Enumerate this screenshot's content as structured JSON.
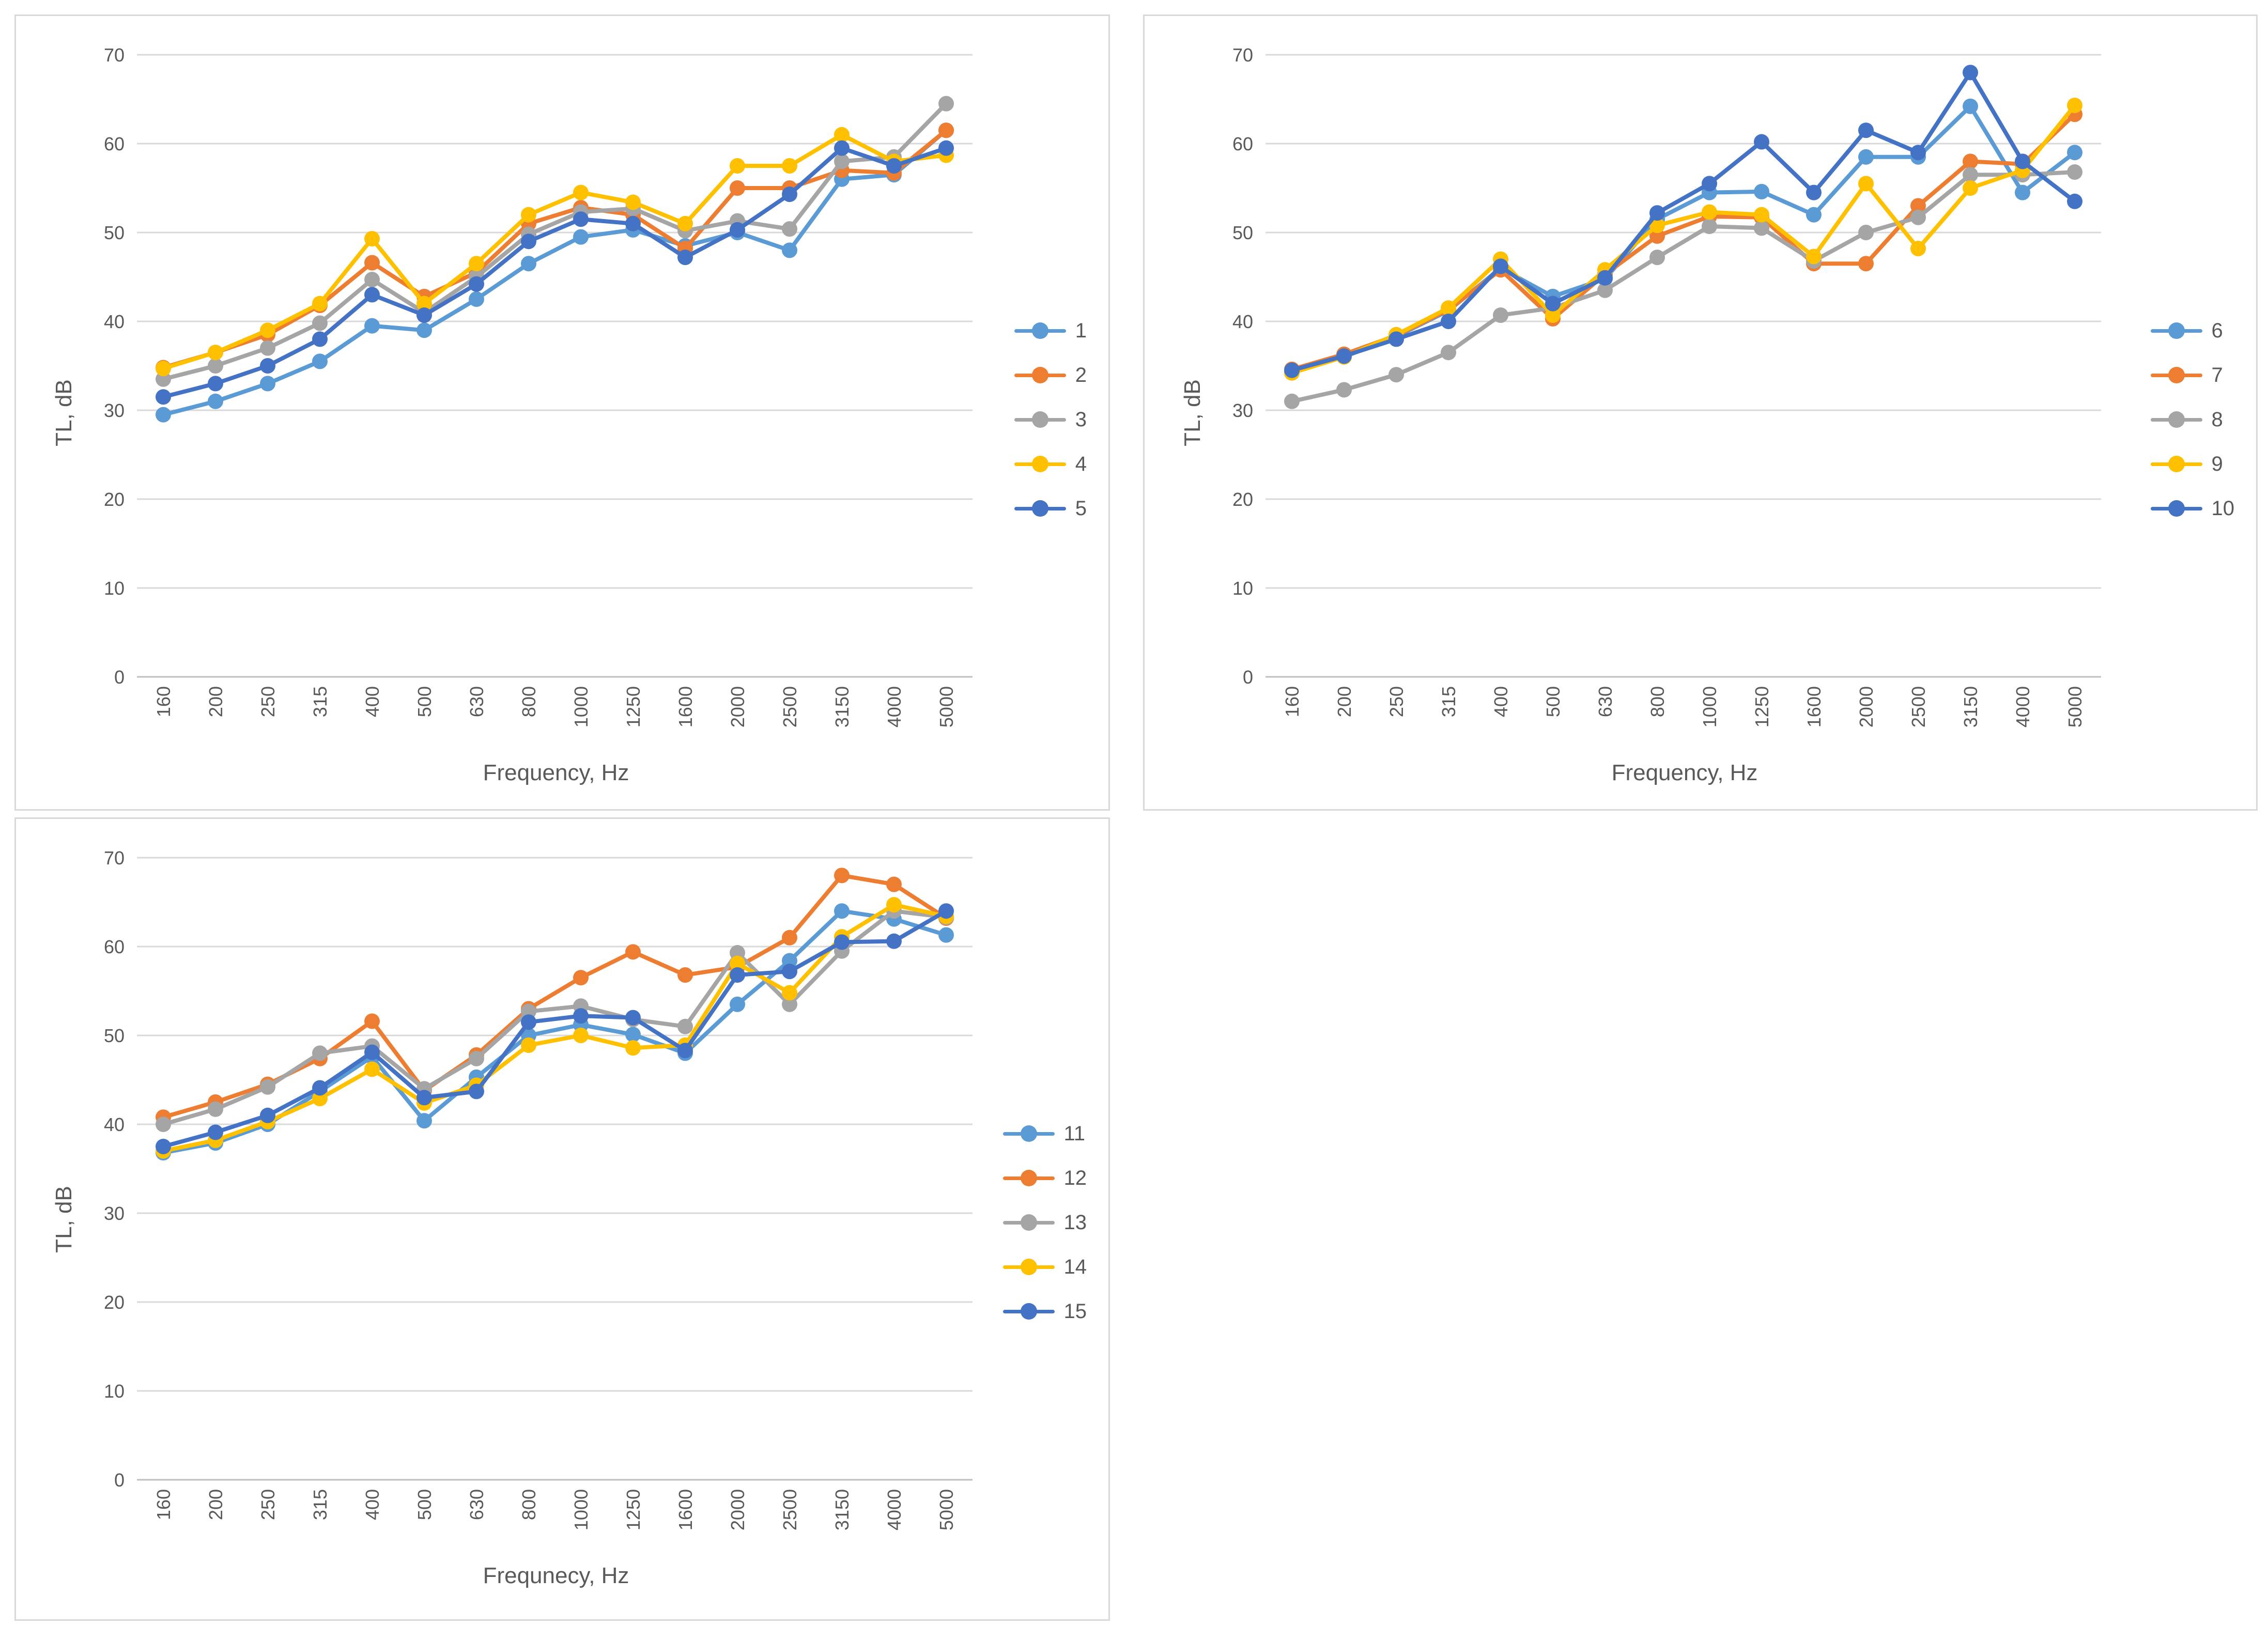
{
  "colors": {
    "series_palette": [
      "#5B9BD5",
      "#ED7D31",
      "#A5A5A5",
      "#FFC000",
      "#4472C4"
    ],
    "gridline": "#D9D9D9",
    "axis_line": "#BFBFBF",
    "tick_text": "#595959",
    "title_text": "#595959",
    "panel_border": "#D9D9D9",
    "background": "#FFFFFF"
  },
  "chart_data": [
    {
      "type": "line",
      "title": "",
      "xlabel": "Frequency, Hz",
      "ylabel": "TL, dB",
      "ylim": [
        0,
        70
      ],
      "yticks": [
        0,
        10,
        20,
        30,
        40,
        50,
        60,
        70
      ],
      "grid": true,
      "legend_position": "right",
      "categories": [
        "160",
        "200",
        "250",
        "315",
        "400",
        "500",
        "630",
        "800",
        "1000",
        "1250",
        "1600",
        "2000",
        "2500",
        "3150",
        "4000",
        "5000"
      ],
      "series": [
        {
          "name": "1",
          "values": [
            29.5,
            31,
            33,
            35.5,
            39.5,
            39,
            42.5,
            46.5,
            49.5,
            50.3,
            48.5,
            50,
            48,
            56,
            56.5,
            61.5
          ]
        },
        {
          "name": "2",
          "values": [
            34.8,
            36.5,
            38.5,
            41.8,
            46.6,
            42.8,
            45.5,
            51,
            52.8,
            52,
            48.2,
            55,
            55,
            57,
            56.7,
            61.5
          ]
        },
        {
          "name": "3",
          "values": [
            33.5,
            35,
            37,
            39.8,
            44.7,
            41,
            45,
            49.8,
            52.3,
            52.7,
            50.2,
            51.3,
            50.4,
            58,
            58.5,
            64.5
          ]
        },
        {
          "name": "4",
          "values": [
            34.7,
            36.5,
            39,
            42,
            49.3,
            42,
            46.5,
            52,
            54.5,
            53.4,
            51,
            57.5,
            57.5,
            61,
            58,
            58.7
          ]
        },
        {
          "name": "5",
          "values": [
            31.5,
            33,
            35,
            38,
            43,
            40.7,
            44.2,
            49,
            51.5,
            51,
            47.2,
            50.3,
            54.3,
            59.5,
            57.5,
            59.5
          ]
        }
      ]
    },
    {
      "type": "line",
      "title": "",
      "xlabel": "Frequency, Hz",
      "ylabel": "TL, dB",
      "ylim": [
        0,
        70
      ],
      "yticks": [
        0,
        10,
        20,
        30,
        40,
        50,
        60,
        70
      ],
      "grid": true,
      "legend_position": "right",
      "categories": [
        "160",
        "200",
        "250",
        "315",
        "400",
        "500",
        "630",
        "800",
        "1000",
        "1250",
        "1600",
        "2000",
        "2500",
        "3150",
        "4000",
        "5000"
      ],
      "series": [
        {
          "name": "6",
          "values": [
            34.3,
            36,
            38.3,
            41.2,
            46,
            42.8,
            44.8,
            51.5,
            54.5,
            54.6,
            52,
            58.5,
            58.5,
            64.2,
            54.5,
            59
          ]
        },
        {
          "name": "7",
          "values": [
            34.6,
            36.3,
            38.4,
            41.3,
            45.8,
            40.3,
            45.3,
            49.6,
            51.8,
            51.7,
            46.5,
            46.5,
            53,
            58,
            57.7,
            63.3
          ]
        },
        {
          "name": "8",
          "values": [
            31,
            32.3,
            34,
            36.5,
            40.7,
            41.5,
            43.5,
            47.2,
            50.7,
            50.5,
            46.8,
            50,
            51.7,
            56.5,
            56.5,
            56.8
          ]
        },
        {
          "name": "9",
          "values": [
            34.2,
            36,
            38.5,
            41.5,
            47,
            40.7,
            45.8,
            50.8,
            52.3,
            52,
            47.3,
            55.5,
            48.2,
            55,
            57,
            64.3
          ]
        },
        {
          "name": "10",
          "values": [
            34.5,
            36.1,
            38,
            40,
            46.2,
            42,
            44.9,
            52.2,
            55.5,
            60.2,
            54.5,
            61.5,
            59,
            68,
            58,
            53.5
          ]
        }
      ]
    },
    {
      "type": "line",
      "title": "",
      "xlabel": "Frequnecy, Hz",
      "ylabel": "TL, dB",
      "ylim": [
        0,
        70
      ],
      "yticks": [
        0,
        10,
        20,
        30,
        40,
        50,
        60,
        70
      ],
      "grid": true,
      "legend_position": "right",
      "categories": [
        "160",
        "200",
        "250",
        "315",
        "400",
        "500",
        "630",
        "800",
        "1000",
        "1250",
        "1600",
        "2000",
        "2500",
        "3150",
        "4000",
        "5000"
      ],
      "series": [
        {
          "name": "11",
          "values": [
            36.8,
            37.9,
            40,
            43.7,
            47.6,
            40.4,
            45.3,
            50,
            51.2,
            50.1,
            48,
            53.5,
            58.4,
            64,
            63.1,
            61.3
          ]
        },
        {
          "name": "12",
          "values": [
            40.8,
            42.5,
            44.5,
            47.4,
            51.6,
            43.8,
            47.8,
            53,
            56.5,
            59.4,
            56.8,
            57.7,
            61,
            68,
            67,
            63.2
          ]
        },
        {
          "name": "13",
          "values": [
            40,
            41.7,
            44.2,
            48,
            48.8,
            44,
            47.4,
            52.7,
            53.3,
            51.8,
            51,
            59.3,
            53.5,
            59.5,
            64,
            63.3
          ]
        },
        {
          "name": "14",
          "values": [
            37,
            38.2,
            40.3,
            42.9,
            46.2,
            42.4,
            44.4,
            48.9,
            50,
            48.6,
            48.9,
            58.1,
            54.8,
            61.1,
            64.7,
            63.4
          ]
        },
        {
          "name": "15",
          "values": [
            37.5,
            39.1,
            41,
            44.1,
            48.1,
            43,
            43.7,
            51.5,
            52.2,
            52,
            48.3,
            56.8,
            57.2,
            60.5,
            60.6,
            64
          ]
        }
      ]
    }
  ]
}
